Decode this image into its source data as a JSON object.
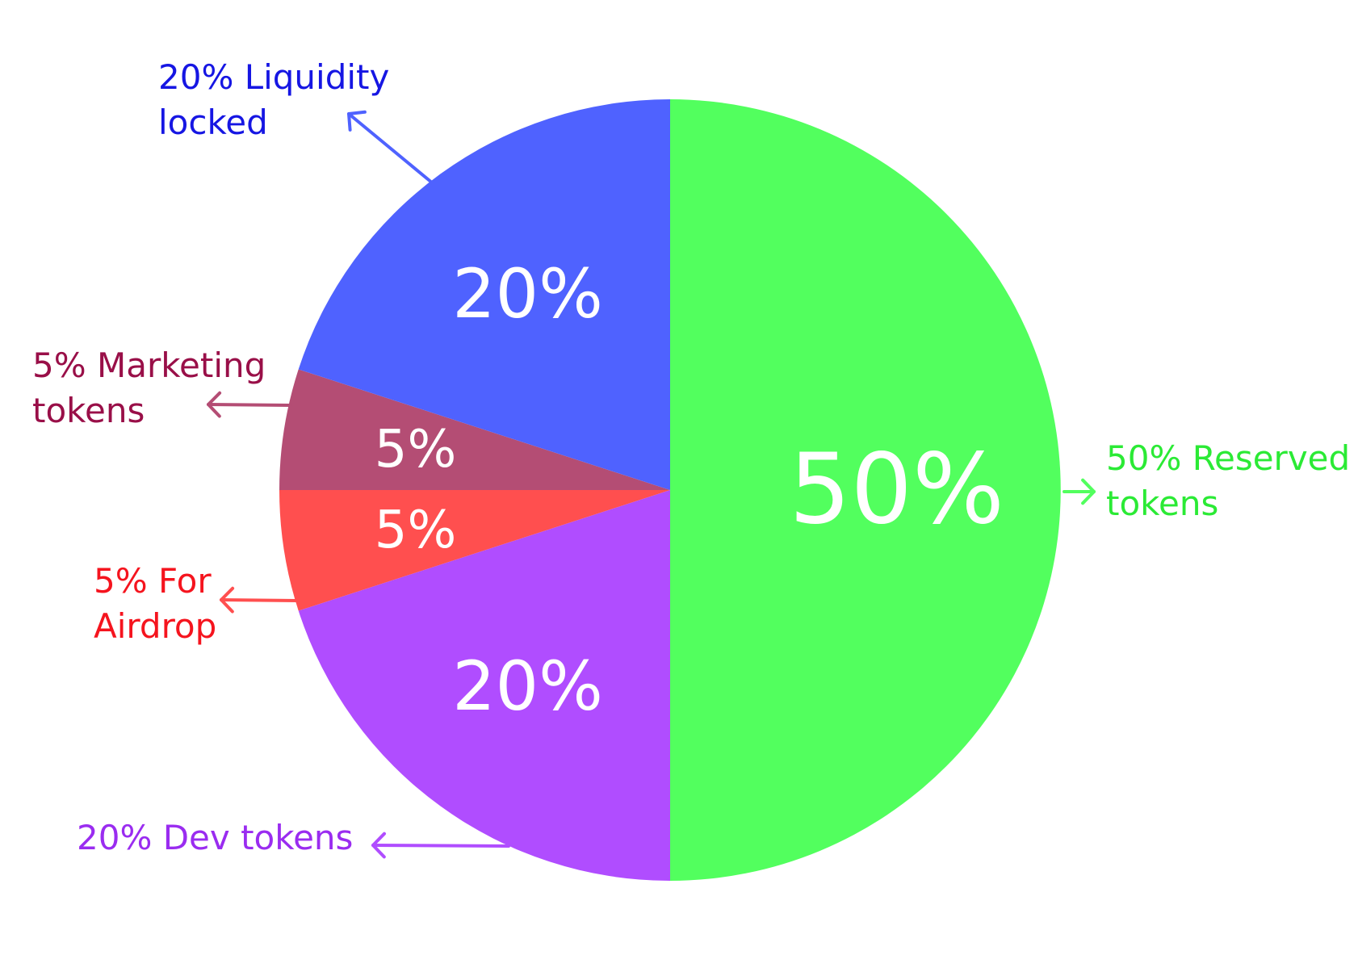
{
  "chart_data": {
    "type": "pie",
    "title": "",
    "unit": "%",
    "start": "12 o'clock",
    "direction": "clockwise",
    "legend": "none",
    "slices": [
      {
        "value": 50,
        "pct_label": "50%",
        "label_lines": [
          "50% Reserved",
          "tokens"
        ],
        "color": "#52ff5e",
        "label_color": "#2bea35"
      },
      {
        "value": 20,
        "pct_label": "20%",
        "label_lines": [
          "20% Dev tokens"
        ],
        "color": "#b04dff",
        "label_color": "#9a2cf0"
      },
      {
        "value": 5,
        "pct_label": "5%",
        "label_lines": [
          "5% For",
          "Airdrop"
        ],
        "color": "#ff4f4f",
        "label_color": "#f5141e"
      },
      {
        "value": 5,
        "pct_label": "5%",
        "label_lines": [
          "5% Marketing",
          "tokens"
        ],
        "color": "#b44d74",
        "label_color": "#990f48"
      },
      {
        "value": 20,
        "pct_label": "20%",
        "label_lines": [
          "20% Liquidity",
          "locked"
        ],
        "color": "#4f62ff",
        "label_color": "#1616e3"
      }
    ]
  }
}
